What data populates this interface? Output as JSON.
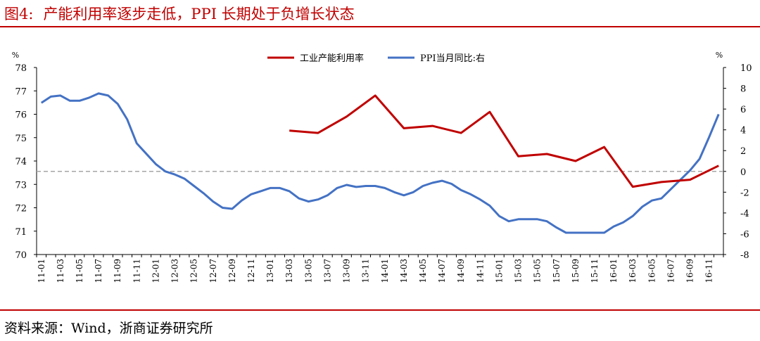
{
  "header": {
    "label": "图4:",
    "title": "产能利用率逐步走低，PPI 长期处于负增长状态"
  },
  "footer": {
    "source": "资料来源：Wind，浙商证券研究所"
  },
  "colors": {
    "accent": "#c00000",
    "capacity_series": "#c00000",
    "ppi_series": "#4472c4",
    "zero_line": "#a6a6a6"
  },
  "chart_data": {
    "type": "line",
    "title": "",
    "left_axis": {
      "unit_label": "%",
      "ylim": [
        70,
        78
      ],
      "ticks": [
        70,
        71,
        72,
        73,
        74,
        75,
        76,
        77,
        78
      ]
    },
    "right_axis": {
      "unit_label": "%",
      "ylim": [
        -8,
        10
      ],
      "ticks": [
        -8,
        -6,
        -4,
        -2,
        0,
        2,
        4,
        6,
        8,
        10
      ]
    },
    "x_tick_labels": [
      "11-01",
      "11-03",
      "11-05",
      "11-07",
      "11-09",
      "11-11",
      "12-01",
      "12-03",
      "12-05",
      "12-07",
      "12-09",
      "12-11",
      "13-01",
      "13-03",
      "13-05",
      "13-07",
      "13-09",
      "13-11",
      "14-01",
      "14-03",
      "14-05",
      "14-07",
      "14-09",
      "14-11",
      "15-01",
      "15-03",
      "15-05",
      "15-07",
      "15-09",
      "15-11",
      "16-01",
      "16-03",
      "16-05",
      "16-07",
      "16-09",
      "16-11"
    ],
    "x": [
      "11-01",
      "11-02",
      "11-03",
      "11-04",
      "11-05",
      "11-06",
      "11-07",
      "11-08",
      "11-09",
      "11-10",
      "11-11",
      "11-12",
      "12-01",
      "12-02",
      "12-03",
      "12-04",
      "12-05",
      "12-06",
      "12-07",
      "12-08",
      "12-09",
      "12-10",
      "12-11",
      "12-12",
      "13-01",
      "13-02",
      "13-03",
      "13-04",
      "13-05",
      "13-06",
      "13-07",
      "13-08",
      "13-09",
      "13-10",
      "13-11",
      "13-12",
      "14-01",
      "14-02",
      "14-03",
      "14-04",
      "14-05",
      "14-06",
      "14-07",
      "14-08",
      "14-09",
      "14-10",
      "14-11",
      "14-12",
      "15-01",
      "15-02",
      "15-03",
      "15-04",
      "15-05",
      "15-06",
      "15-07",
      "15-08",
      "15-09",
      "15-10",
      "15-11",
      "15-12",
      "16-01",
      "16-02",
      "16-03",
      "16-04",
      "16-05",
      "16-06",
      "16-07",
      "16-08",
      "16-09",
      "16-10",
      "16-11",
      "16-12"
    ],
    "grid": false,
    "legend_position": "top-center",
    "zero_reference": {
      "axis": "right",
      "value": 0,
      "style": "dashed"
    },
    "series": [
      {
        "name": "工业产能利用率",
        "axis": "left",
        "points": [
          [
            "13-03",
            75.3
          ],
          [
            "13-06",
            75.2
          ],
          [
            "13-09",
            75.9
          ],
          [
            "13-12",
            76.8
          ],
          [
            "14-03",
            75.4
          ],
          [
            "14-06",
            75.5
          ],
          [
            "14-09",
            75.2
          ],
          [
            "14-12",
            76.1
          ],
          [
            "15-03",
            74.2
          ],
          [
            "15-06",
            74.3
          ],
          [
            "15-09",
            74.0
          ],
          [
            "15-12",
            74.6
          ],
          [
            "16-03",
            72.9
          ],
          [
            "16-06",
            73.1
          ],
          [
            "16-09",
            73.2
          ],
          [
            "16-12",
            73.8
          ]
        ]
      },
      {
        "name": "PPI当月同比:右",
        "axis": "right",
        "values": [
          6.6,
          7.2,
          7.3,
          6.8,
          6.8,
          7.1,
          7.5,
          7.3,
          6.5,
          5.0,
          2.7,
          1.7,
          0.7,
          0.0,
          -0.3,
          -0.7,
          -1.4,
          -2.1,
          -2.9,
          -3.5,
          -3.6,
          -2.8,
          -2.2,
          -1.9,
          -1.6,
          -1.6,
          -1.9,
          -2.6,
          -2.9,
          -2.7,
          -2.3,
          -1.6,
          -1.3,
          -1.5,
          -1.4,
          -1.4,
          -1.6,
          -2.0,
          -2.3,
          -2.0,
          -1.4,
          -1.1,
          -0.9,
          -1.2,
          -1.8,
          -2.2,
          -2.7,
          -3.3,
          -4.3,
          -4.8,
          -4.6,
          -4.6,
          -4.6,
          -4.8,
          -5.4,
          -5.9,
          -5.9,
          -5.9,
          -5.9,
          -5.9,
          -5.3,
          -4.9,
          -4.3,
          -3.4,
          -2.8,
          -2.6,
          -1.7,
          -0.8,
          0.1,
          1.2,
          3.3,
          5.5
        ]
      }
    ]
  }
}
